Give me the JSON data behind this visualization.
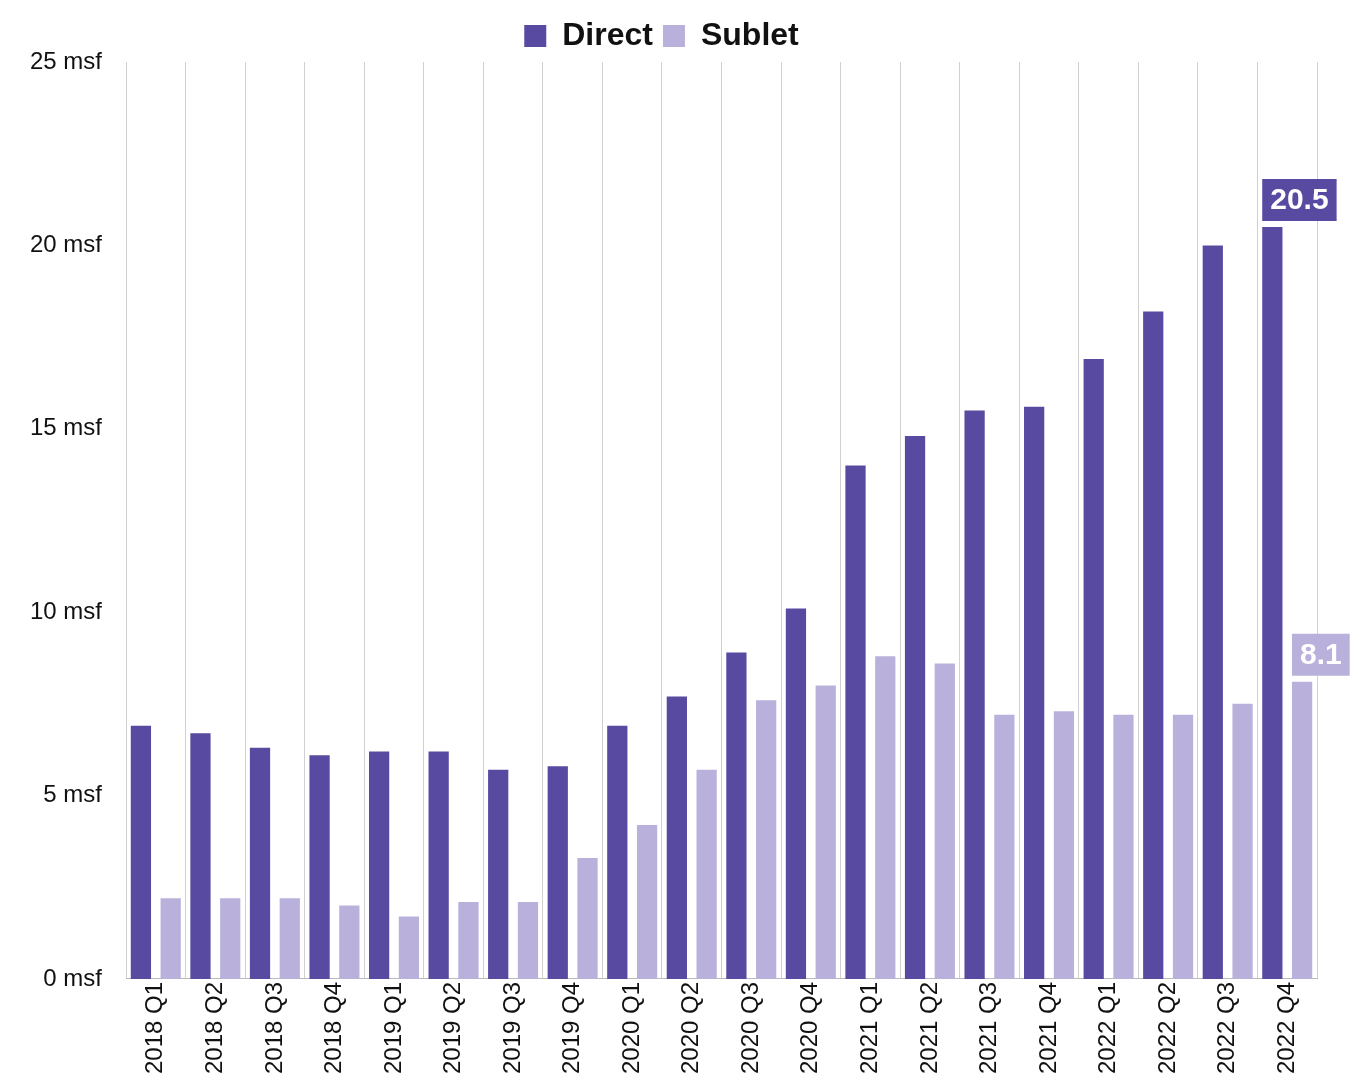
{
  "chart_data": {
    "type": "bar",
    "categories": [
      "2018 Q1",
      "2018 Q2",
      "2018 Q3",
      "2018 Q4",
      "2019 Q1",
      "2019 Q2",
      "2019 Q3",
      "2019 Q4",
      "2020 Q1",
      "2020 Q2",
      "2020 Q3",
      "2020 Q4",
      "2021 Q1",
      "2021 Q2",
      "2021 Q3",
      "2021 Q4",
      "2022 Q1",
      "2022 Q2",
      "2022 Q3",
      "2022 Q4"
    ],
    "series": [
      {
        "name": "Direct",
        "color": "#574aa0",
        "values": [
          6.9,
          6.7,
          6.3,
          6.1,
          6.2,
          6.2,
          5.7,
          5.8,
          6.9,
          7.7,
          8.9,
          10.1,
          14.0,
          14.8,
          15.5,
          15.6,
          16.9,
          18.2,
          20.0,
          20.5
        ],
        "value_labels": [
          null,
          null,
          null,
          null,
          null,
          null,
          null,
          null,
          null,
          null,
          null,
          null,
          null,
          null,
          null,
          null,
          null,
          null,
          null,
          "20.5"
        ]
      },
      {
        "name": "Sublet",
        "color": "#b9b1dc",
        "values": [
          2.2,
          2.2,
          2.2,
          2.0,
          1.7,
          2.1,
          2.1,
          3.3,
          4.2,
          5.7,
          7.6,
          8.0,
          8.8,
          8.6,
          7.2,
          7.3,
          7.2,
          7.2,
          7.5,
          8.1
        ],
        "value_labels": [
          null,
          null,
          null,
          null,
          null,
          null,
          null,
          null,
          null,
          null,
          null,
          null,
          null,
          null,
          null,
          null,
          null,
          null,
          null,
          "8.1"
        ]
      }
    ],
    "ylim": [
      0,
      25
    ],
    "yticks": [
      {
        "value": 0,
        "label": "0 msf"
      },
      {
        "value": 5,
        "label": "5 msf"
      },
      {
        "value": 10,
        "label": "10 msf"
      },
      {
        "value": 15,
        "label": "15 msf"
      },
      {
        "value": 20,
        "label": "20 msf"
      },
      {
        "value": 25,
        "label": "25 msf"
      }
    ],
    "grid": "x",
    "legend": "top"
  }
}
